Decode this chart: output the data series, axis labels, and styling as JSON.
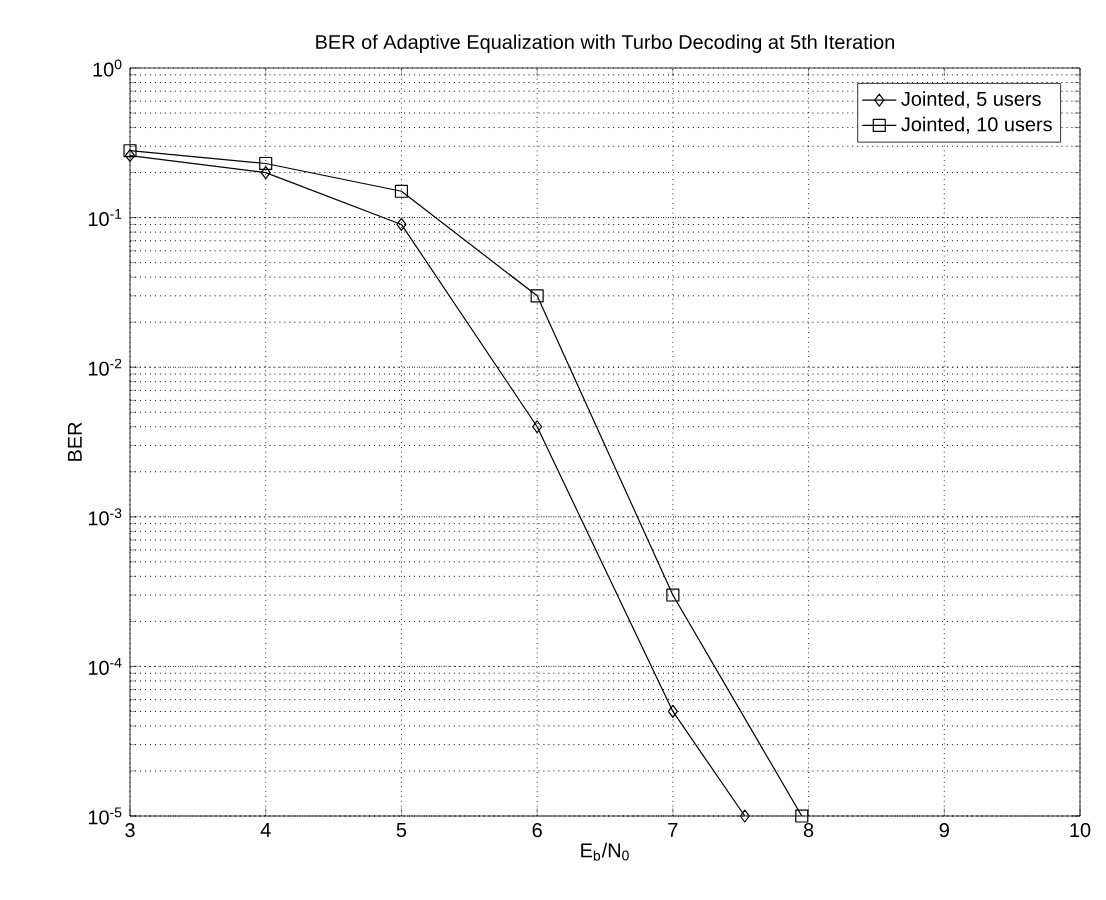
{
  "chart_data": {
    "type": "line",
    "title": "BER of Adaptive Equalization with Turbo Decoding at 5th Iteration",
    "xlabel": "E$_{b}$/N$_{0}$",
    "ylabel": "BER",
    "series": [
      {
        "name": "Jointed, 5 users",
        "color": "#000000",
        "marker": "diamond",
        "x": [
          3,
          4,
          5,
          6,
          7,
          7.53
        ],
        "values": [
          0.26,
          0.2,
          0.09,
          0.004,
          5e-05,
          1e-05
        ]
      },
      {
        "name": "Jointed, 10 users",
        "color": "#000000",
        "marker": "square",
        "x": [
          3,
          4,
          5,
          6,
          7,
          7.95
        ],
        "values": [
          0.28,
          0.23,
          0.15,
          0.03,
          0.0003,
          1e-05
        ]
      }
    ],
    "xlim": [
      3,
      10
    ],
    "xticks": [
      3,
      4,
      5,
      6,
      7,
      8,
      9,
      10
    ],
    "ylim": [
      1e-05,
      1
    ],
    "yticks": [
      {
        "value": 1e-05,
        "label": "10$^{-5}$"
      },
      {
        "value": 0.0001,
        "label": "10$^{-4}$"
      },
      {
        "value": 0.001,
        "label": "10$^{-3}$"
      },
      {
        "value": 0.01,
        "label": "10$^{-2}$"
      },
      {
        "value": 0.1,
        "label": "10$^{-1}$"
      },
      {
        "value": 1,
        "label": "10$^{0}$"
      }
    ],
    "log": "y",
    "grid": true,
    "legend": "top right",
    "line_style": "solid"
  }
}
